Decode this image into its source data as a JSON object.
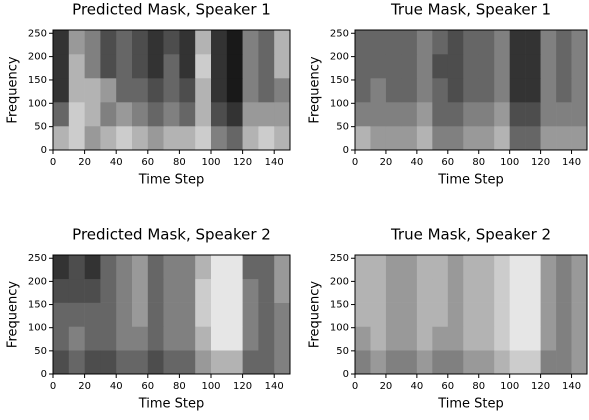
{
  "chart_data": [
    {
      "type": "heatmap",
      "title": "Predicted Mask, Speaker 1",
      "xlabel": "Time Step",
      "ylabel": "Frequency",
      "xlim": [
        0,
        150
      ],
      "xticks": [
        0,
        20,
        40,
        60,
        80,
        100,
        120,
        140
      ],
      "ylim": [
        0,
        257
      ],
      "yticks": [
        0,
        50,
        100,
        150,
        200,
        250
      ],
      "z": [
        [
          0.3,
          0.2,
          0.4,
          0.3,
          0.2,
          0.3,
          0.4,
          0.3,
          0.3,
          0.2,
          0.5,
          0.6,
          0.3,
          0.2,
          0.3
        ],
        [
          0.6,
          0.2,
          0.3,
          0.5,
          0.4,
          0.5,
          0.6,
          0.5,
          0.6,
          0.3,
          0.7,
          0.8,
          0.4,
          0.4,
          0.4
        ],
        [
          0.8,
          0.3,
          0.3,
          0.4,
          0.6,
          0.6,
          0.7,
          0.6,
          0.7,
          0.3,
          0.8,
          0.9,
          0.5,
          0.6,
          0.5
        ],
        [
          0.8,
          0.3,
          0.5,
          0.7,
          0.6,
          0.7,
          0.8,
          0.6,
          0.8,
          0.2,
          0.8,
          0.9,
          0.5,
          0.6,
          0.3
        ],
        [
          0.8,
          0.4,
          0.5,
          0.7,
          0.6,
          0.7,
          0.8,
          0.7,
          0.8,
          0.3,
          0.8,
          0.9,
          0.5,
          0.6,
          0.3
        ]
      ]
    },
    {
      "type": "heatmap",
      "title": "True Mask, Speaker 1",
      "xlabel": "Time Step",
      "ylabel": "Frequency",
      "xlim": [
        0,
        150
      ],
      "xticks": [
        0,
        20,
        40,
        60,
        80,
        100,
        120,
        140
      ],
      "ylim": [
        0,
        257
      ],
      "yticks": [
        0,
        50,
        100,
        150,
        200,
        250
      ],
      "z": [
        [
          0.3,
          0.4,
          0.4,
          0.4,
          0.3,
          0.5,
          0.5,
          0.4,
          0.4,
          0.3,
          0.6,
          0.6,
          0.4,
          0.4,
          0.4
        ],
        [
          0.5,
          0.5,
          0.5,
          0.5,
          0.4,
          0.6,
          0.6,
          0.5,
          0.5,
          0.4,
          0.7,
          0.7,
          0.5,
          0.5,
          0.5
        ],
        [
          0.6,
          0.5,
          0.6,
          0.6,
          0.5,
          0.6,
          0.7,
          0.6,
          0.6,
          0.5,
          0.8,
          0.8,
          0.5,
          0.6,
          0.5
        ],
        [
          0.6,
          0.6,
          0.6,
          0.6,
          0.5,
          0.7,
          0.7,
          0.6,
          0.6,
          0.5,
          0.8,
          0.8,
          0.5,
          0.6,
          0.5
        ],
        [
          0.6,
          0.6,
          0.6,
          0.6,
          0.5,
          0.6,
          0.7,
          0.6,
          0.6,
          0.5,
          0.8,
          0.8,
          0.5,
          0.6,
          0.5
        ]
      ]
    },
    {
      "type": "heatmap",
      "title": "Predicted Mask, Speaker 2",
      "xlabel": "Time Step",
      "ylabel": "Frequency",
      "xlim": [
        0,
        150
      ],
      "xticks": [
        0,
        20,
        40,
        60,
        80,
        100,
        120,
        140
      ],
      "ylim": [
        0,
        257
      ],
      "yticks": [
        0,
        50,
        100,
        150,
        200,
        250
      ],
      "z": [
        [
          0.7,
          0.6,
          0.7,
          0.7,
          0.6,
          0.6,
          0.7,
          0.6,
          0.6,
          0.4,
          0.3,
          0.3,
          0.6,
          0.6,
          0.5
        ],
        [
          0.6,
          0.5,
          0.6,
          0.6,
          0.5,
          0.5,
          0.6,
          0.5,
          0.5,
          0.3,
          0.1,
          0.1,
          0.5,
          0.6,
          0.5
        ],
        [
          0.6,
          0.6,
          0.6,
          0.6,
          0.5,
          0.4,
          0.6,
          0.5,
          0.5,
          0.2,
          0.1,
          0.1,
          0.5,
          0.6,
          0.5
        ],
        [
          0.7,
          0.7,
          0.7,
          0.6,
          0.5,
          0.4,
          0.6,
          0.5,
          0.5,
          0.2,
          0.1,
          0.1,
          0.5,
          0.6,
          0.4
        ],
        [
          0.8,
          0.7,
          0.8,
          0.6,
          0.5,
          0.4,
          0.6,
          0.5,
          0.5,
          0.3,
          0.1,
          0.1,
          0.6,
          0.6,
          0.4
        ]
      ]
    },
    {
      "type": "heatmap",
      "title": "True Mask, Speaker 2",
      "xlabel": "Time Step",
      "ylabel": "Frequency",
      "xlim": [
        0,
        150
      ],
      "xticks": [
        0,
        20,
        40,
        60,
        80,
        100,
        120,
        140
      ],
      "ylim": [
        0,
        257
      ],
      "yticks": [
        0,
        50,
        100,
        150,
        200,
        250
      ],
      "z": [
        [
          0.5,
          0.4,
          0.5,
          0.5,
          0.4,
          0.5,
          0.5,
          0.4,
          0.4,
          0.3,
          0.2,
          0.2,
          0.5,
          0.5,
          0.4
        ],
        [
          0.4,
          0.3,
          0.4,
          0.4,
          0.3,
          0.4,
          0.4,
          0.3,
          0.3,
          0.2,
          0.1,
          0.1,
          0.4,
          0.5,
          0.4
        ],
        [
          0.3,
          0.3,
          0.4,
          0.4,
          0.3,
          0.3,
          0.4,
          0.3,
          0.3,
          0.2,
          0.1,
          0.1,
          0.4,
          0.5,
          0.4
        ],
        [
          0.3,
          0.3,
          0.4,
          0.4,
          0.3,
          0.3,
          0.4,
          0.3,
          0.3,
          0.2,
          0.1,
          0.1,
          0.4,
          0.5,
          0.4
        ],
        [
          0.3,
          0.3,
          0.4,
          0.4,
          0.3,
          0.3,
          0.4,
          0.3,
          0.3,
          0.2,
          0.1,
          0.1,
          0.4,
          0.5,
          0.4
        ]
      ]
    }
  ]
}
